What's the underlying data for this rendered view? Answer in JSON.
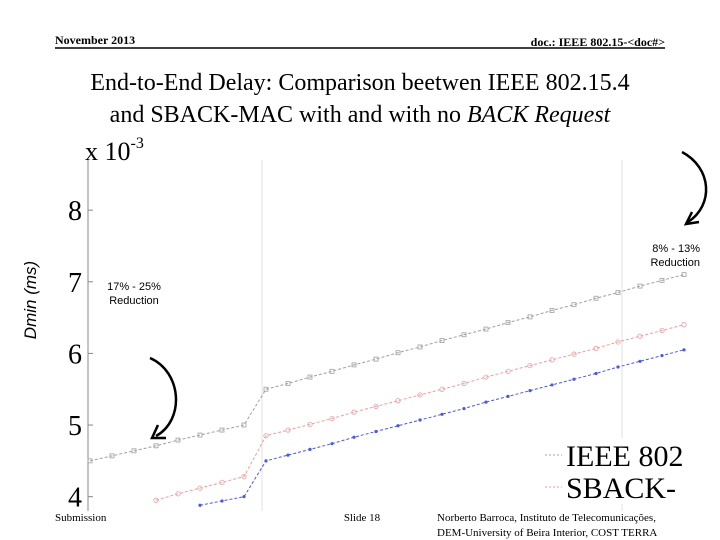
{
  "header": {
    "date": "November 2013",
    "doc": "doc.: IEEE 802.15-<doc#>"
  },
  "title": {
    "line1": "End-to-End Delay: Comparison beetwen IEEE 802.15.4",
    "line2": "and SBACK-MAC with and with no ",
    "line2_italic": "BACK Request"
  },
  "chart_data": {
    "type": "line",
    "ylabel": "Dmin (ms)",
    "y_multiplier": "x 10",
    "y_multiplier_exp": "-3",
    "ylim": [
      3.8,
      8.7
    ],
    "yticks": [
      4,
      5,
      6,
      7,
      8
    ],
    "xlim": [
      0,
      54
    ],
    "x": [
      0,
      2,
      4,
      6,
      8,
      10,
      12,
      14,
      16,
      18,
      20,
      22,
      24,
      26,
      28,
      30,
      32,
      34,
      36,
      38,
      40,
      42,
      44,
      46,
      48,
      50,
      52,
      54
    ],
    "series": [
      {
        "name": "IEEE 802",
        "color": "#a0a0a0",
        "marker": "square",
        "values": [
          4.5,
          4.57,
          4.64,
          4.71,
          4.79,
          4.86,
          4.93,
          5.0,
          5.5,
          5.58,
          5.67,
          5.75,
          5.84,
          5.92,
          6.01,
          6.09,
          6.18,
          6.26,
          6.34,
          6.43,
          6.51,
          6.6,
          6.68,
          6.77,
          6.85,
          6.94,
          7.02,
          7.1
        ]
      },
      {
        "name": "SBACK-",
        "color": "#e8a0a0",
        "marker": "circle",
        "values": [
          null,
          null,
          null,
          3.95,
          4.04,
          4.12,
          4.2,
          4.28,
          4.85,
          4.93,
          5.01,
          5.09,
          5.18,
          5.26,
          5.34,
          5.42,
          5.5,
          5.58,
          5.67,
          5.75,
          5.83,
          5.91,
          5.99,
          6.07,
          6.16,
          6.24,
          6.32,
          6.4
        ]
      },
      {
        "color": "#4a5ad8",
        "marker": "dot",
        "values": [
          null,
          null,
          null,
          null,
          null,
          3.88,
          3.94,
          4.0,
          4.5,
          4.58,
          4.66,
          4.74,
          4.83,
          4.91,
          4.99,
          5.07,
          5.15,
          5.23,
          5.32,
          5.4,
          5.48,
          5.56,
          5.64,
          5.72,
          5.81,
          5.89,
          5.97,
          6.05
        ]
      }
    ],
    "annotations": [
      {
        "line1": "8% - 13%",
        "line2": "Reduction"
      },
      {
        "line1": "17% - 25%",
        "line2": "Reduction"
      }
    ]
  },
  "footer": {
    "left": "Submission",
    "center": "Slide 18",
    "right_line1": "Norberto Barroca, Instituto de Telecomunicações,",
    "right_line2": "DEM-University of Beira Interior, COST TERRA"
  }
}
